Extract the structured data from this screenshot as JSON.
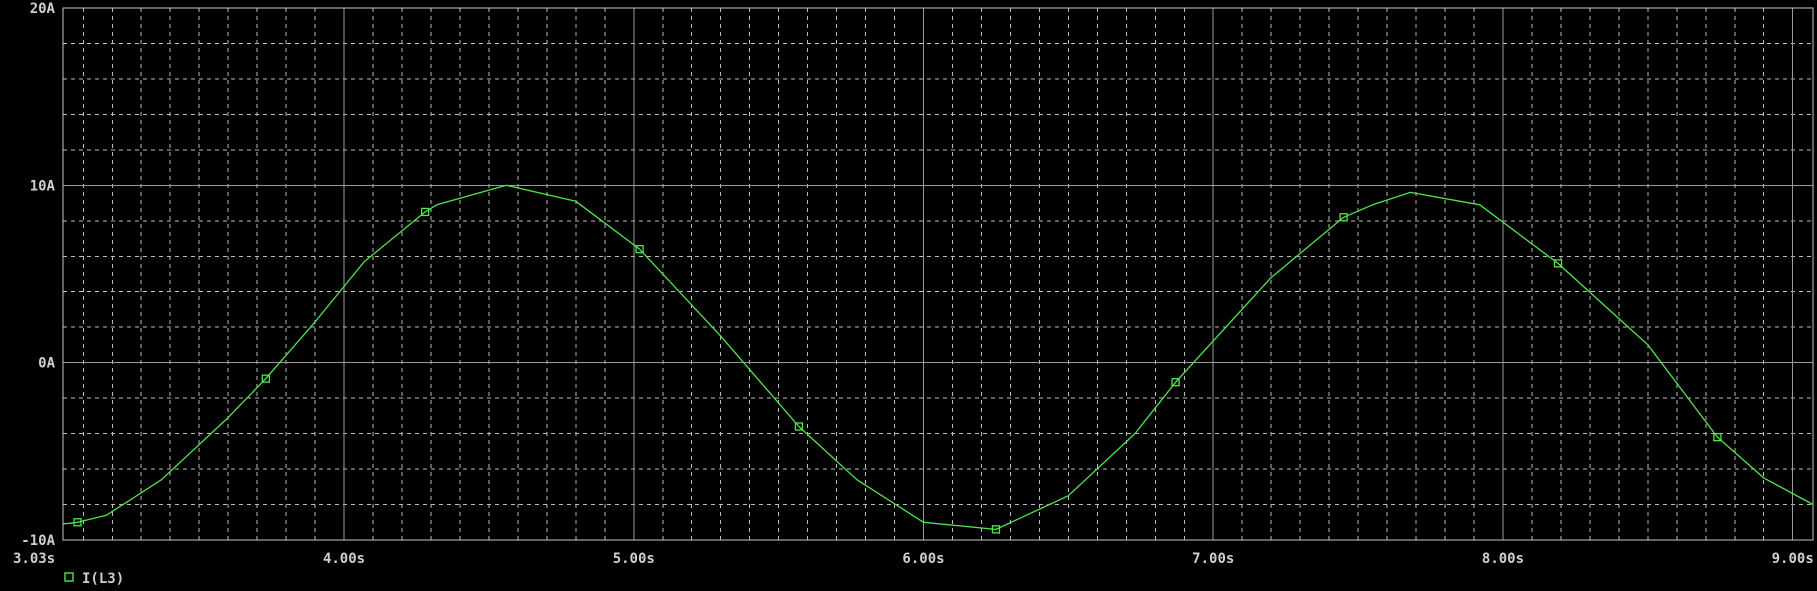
{
  "colors": {
    "background": "#000000",
    "major_grid": "#9a9a9a",
    "minor_grid": "#bdbdbd",
    "axis": "#c8c8c8",
    "text": "#cfcfcf",
    "trace": "#4ee64e"
  },
  "chart_data": {
    "type": "line",
    "title": "",
    "xlabel": "",
    "ylabel": "",
    "xlim": [
      3.03,
      9.07
    ],
    "ylim": [
      -10,
      20
    ],
    "grid": true,
    "legend_placement": "bottom-left",
    "x_ticks": [
      {
        "value": 3.03,
        "label": "3.03s"
      },
      {
        "value": 4.0,
        "label": "4.00s"
      },
      {
        "value": 5.0,
        "label": "5.00s"
      },
      {
        "value": 6.0,
        "label": "6.00s"
      },
      {
        "value": 7.0,
        "label": "7.00s"
      },
      {
        "value": 8.0,
        "label": "8.00s"
      },
      {
        "value": 9.0,
        "label": "9.00s"
      }
    ],
    "y_ticks": [
      {
        "value": 20,
        "label": "20A"
      },
      {
        "value": 10,
        "label": "10A"
      },
      {
        "value": 0,
        "label": "0A"
      },
      {
        "value": -10,
        "label": "-10A"
      }
    ],
    "series": [
      {
        "name": "I(L3)",
        "marker": "square",
        "x": [
          3.03,
          3.08,
          3.18,
          3.37,
          3.6,
          3.73,
          3.9,
          4.07,
          4.28,
          4.32,
          4.56,
          4.8,
          5.02,
          5.3,
          5.57,
          5.77,
          6.0,
          6.25,
          6.5,
          6.73,
          6.87,
          7.2,
          7.45,
          7.55,
          7.68,
          7.92,
          8.19,
          8.5,
          8.74,
          8.9,
          9.07
        ],
        "y": [
          -9.1,
          -9.0,
          -8.6,
          -6.6,
          -3.1,
          -0.9,
          2.3,
          5.7,
          8.5,
          8.9,
          10.0,
          9.1,
          6.4,
          1.5,
          -3.6,
          -6.6,
          -9.0,
          -9.4,
          -7.5,
          -4.0,
          -1.1,
          4.8,
          8.2,
          8.9,
          9.6,
          8.9,
          5.6,
          1.0,
          -4.2,
          -6.5,
          -8.0
        ],
        "marker_x": [
          3.08,
          3.73,
          4.28,
          5.02,
          5.57,
          6.25,
          6.87,
          7.45,
          8.19,
          8.74
        ]
      }
    ]
  }
}
